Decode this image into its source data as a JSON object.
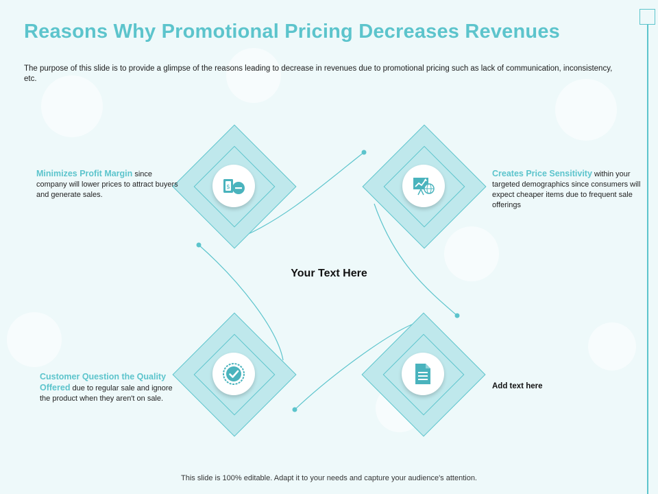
{
  "slide": {
    "title": "Reasons Why Promotional Pricing Decreases Revenues",
    "subtitle": "The purpose of this slide is to provide a glimpse of the reasons leading to decrease in revenues due to promotional pricing such as lack of communication, inconsistency, etc.",
    "center_text": "Your Text Here",
    "footer": "This slide is 100% editable. Adapt it to your needs and capture your audience's attention."
  },
  "points": [
    {
      "heading": "Minimizes Profit Margin",
      "body": " since company will lower prices to attract buyers and generate sales.",
      "icon": "money-minus-icon"
    },
    {
      "heading": "Creates Price Sensitivity",
      "body": " within your targeted demographics since consumers will expect cheaper items due to frequent sale offerings",
      "icon": "chart-globe-icon"
    },
    {
      "heading": "Customer Question the Quality Offered",
      "body": " due to regular sale and ignore the product when they aren't on sale.",
      "icon": "badge-check-icon"
    },
    {
      "heading": "",
      "body": "Add text here",
      "icon": "document-icon"
    }
  ],
  "colors": {
    "accent": "#5cc4cc",
    "diamond_fill": "#bfe8ec",
    "background": "#eef9fa"
  }
}
